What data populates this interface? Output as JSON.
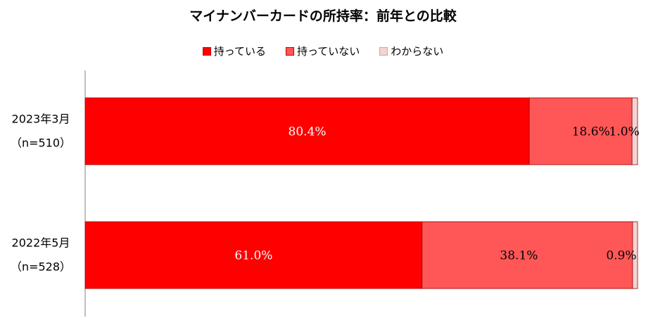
{
  "chart_data": {
    "type": "bar",
    "orientation": "horizontal",
    "stacked": true,
    "title": "マイナンバーカードの所持率：前年との比較",
    "categories": [
      {
        "line1": "2023年3月",
        "line2": "（n=510）"
      },
      {
        "line1": "2022年5月",
        "line2": "（n=528）"
      }
    ],
    "series": [
      {
        "name": "持っている",
        "values": [
          80.4,
          61.0
        ],
        "labels": [
          "80.4%",
          "61.0%"
        ],
        "color": "#ff0000",
        "label_color": "#ffffff"
      },
      {
        "name": "持っていない",
        "values": [
          18.6,
          38.1
        ],
        "labels": [
          "18.6%",
          "38.1%"
        ],
        "color": "#ff5757",
        "label_color": "#000000"
      },
      {
        "name": "わからない",
        "values": [
          1.0,
          0.9
        ],
        "labels": [
          "1.0%",
          "0.9%"
        ],
        "color": "#f2d4d4",
        "label_color": "#000000"
      }
    ],
    "xlim": [
      0,
      100
    ],
    "legend_position": "top",
    "grid": false
  }
}
